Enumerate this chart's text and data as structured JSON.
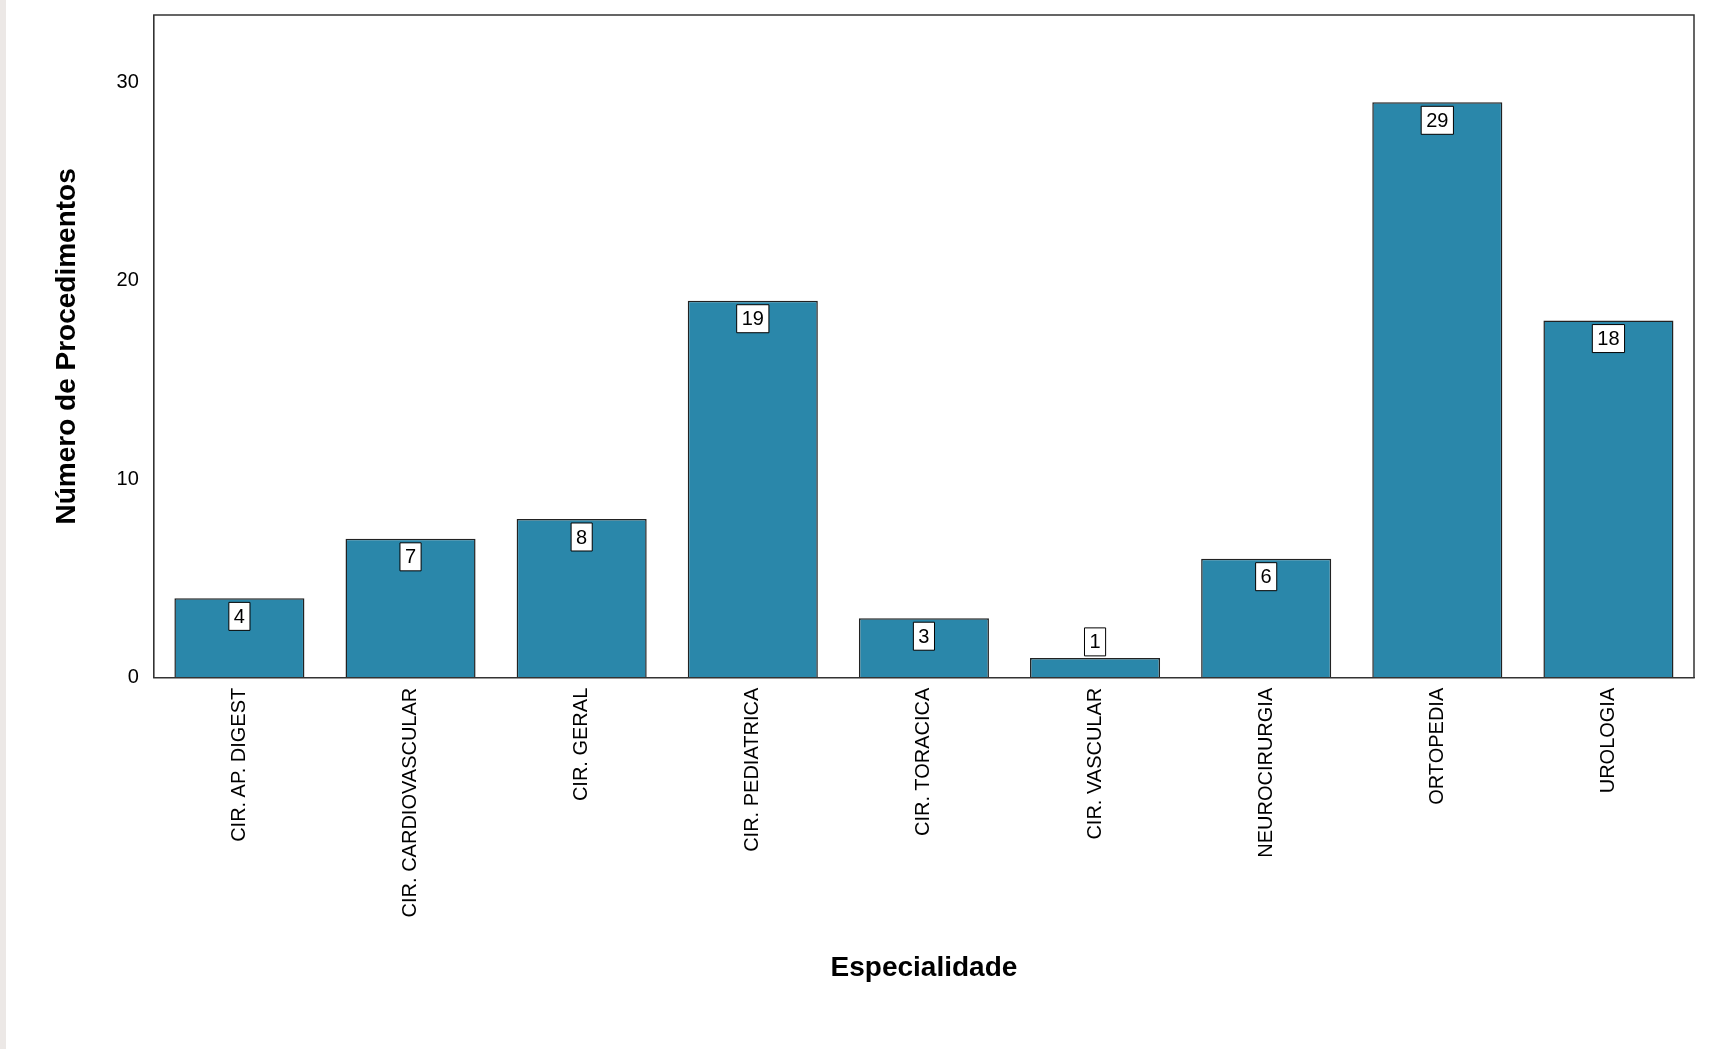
{
  "chart_data": {
    "type": "bar",
    "xlabel": "Especialidade",
    "ylabel": "Número de Procedimentos",
    "categories": [
      "CIR. AP. DIGEST",
      "CIR. CARDIOVASCULAR",
      "CIR. GERAL",
      "CIR. PEDIATRICA",
      "CIR. TORACICA",
      "CIR. VASCULAR",
      "NEUROCIRURGIA",
      "ORTOPEDIA",
      "UROLOGIA"
    ],
    "values": [
      4,
      7,
      8,
      19,
      3,
      1,
      6,
      29,
      18
    ],
    "color": "#2a87aa",
    "ylim": [
      0,
      33.4
    ],
    "yticks": [
      0,
      10,
      20,
      30
    ],
    "grid": false,
    "legend": false,
    "data_labels": true
  }
}
